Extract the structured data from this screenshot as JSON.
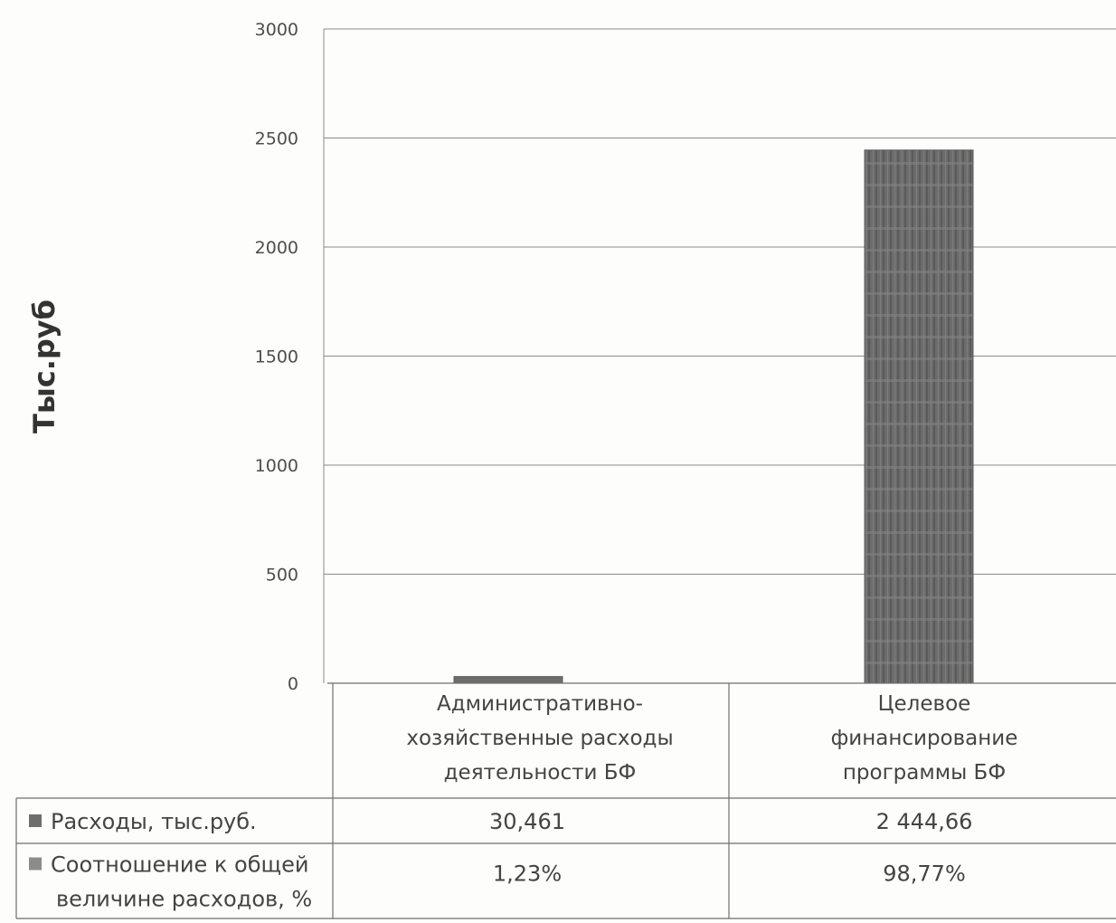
{
  "chart_data": {
    "type": "bar",
    "title": "",
    "ylabel": "Тыс.руб",
    "xlabel": "",
    "ylim": [
      0,
      3000
    ],
    "yticks": [
      0,
      500,
      1000,
      1500,
      2000,
      2500,
      3000
    ],
    "grid": true,
    "categories": [
      [
        "Административно-",
        "хозяйственные расходы",
        "деятельности БФ"
      ],
      [
        "Целевое",
        "финансирование",
        "программы БФ"
      ]
    ],
    "series": [
      {
        "name": "Расходы, тыс.руб.",
        "values": [
          30.461,
          2444.66
        ],
        "color": "#6e6e6e"
      }
    ],
    "data_table": {
      "rows": [
        {
          "label": [
            "Расходы, тыс.руб."
          ],
          "marker_color": "#6e6e6e",
          "cells": [
            "30,461",
            "2 444,66"
          ]
        },
        {
          "label": [
            "Соотношение к общей",
            "величине расходов, %"
          ],
          "marker_color": "#8c8c8c",
          "cells": [
            "1,23%",
            "98,77%"
          ]
        }
      ]
    }
  }
}
